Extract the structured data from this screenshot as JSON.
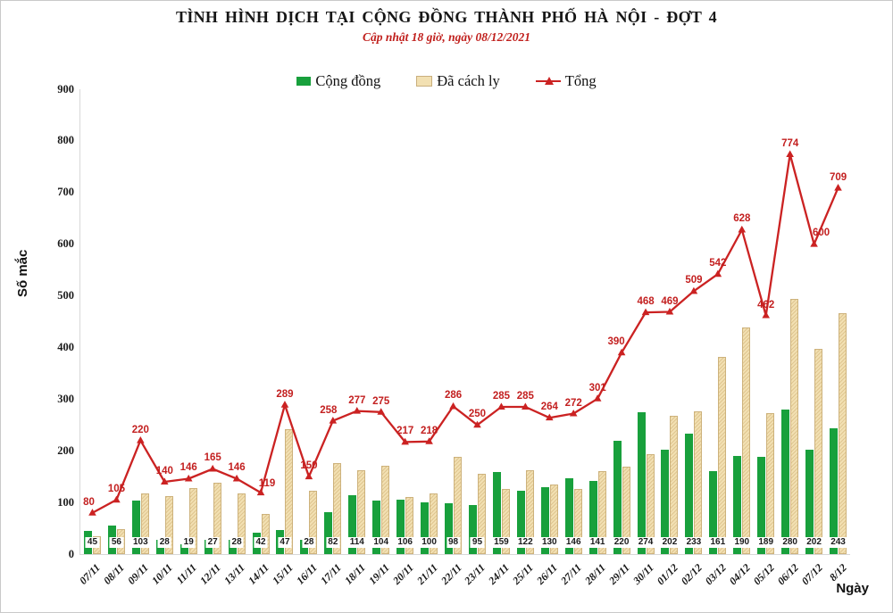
{
  "header": {
    "title": "TÌNH HÌNH DỊCH TẠI CỘNG ĐỒNG THÀNH PHỐ HÀ NỘI - ĐỢT 4",
    "subtitle": "Cập nhật 18 giờ, ngày 08/12/2021"
  },
  "legend": {
    "items": [
      {
        "label": "Cộng đồng",
        "type": "bar",
        "color": "#18a03c"
      },
      {
        "label": "Đã cách ly",
        "type": "bar",
        "color": "#f2e0b2",
        "border": "#c9af7d"
      },
      {
        "label": "Tổng",
        "type": "line",
        "color": "#cb2222"
      }
    ]
  },
  "axes": {
    "y_label": "Số mắc",
    "x_label": "Ngày",
    "y_ticks": [
      0,
      100,
      200,
      300,
      400,
      500,
      600,
      700,
      800,
      900
    ]
  },
  "chart_data": {
    "type": "bar",
    "title": "TÌNH HÌNH DỊCH TẠI CỘNG ĐỒNG THÀNH PHỐ HÀ NỘI - ĐỢT 4",
    "subtitle": "Cập nhật 18 giờ, ngày 08/12/2021",
    "categories": [
      "07/11",
      "08/11",
      "09/11",
      "10/11",
      "11/11",
      "12/11",
      "13/11",
      "14/11",
      "15/11",
      "16/11",
      "17/11",
      "18/11",
      "19/11",
      "20/11",
      "21/11",
      "22/11",
      "23/11",
      "24/11",
      "25/11",
      "26/11",
      "27/11",
      "28/11",
      "29/11",
      "30/11",
      "01/12",
      "02/12",
      "03/12",
      "04/12",
      "05/12",
      "06/12",
      "07/12",
      "8/12"
    ],
    "series": [
      {
        "name": "Cộng đồng",
        "type": "bar",
        "color": "#18a03c",
        "values": [
          45,
          56,
          103,
          28,
          19,
          27,
          28,
          42,
          47,
          28,
          82,
          114,
          104,
          106,
          100,
          98,
          95,
          159,
          122,
          130,
          146,
          141,
          220,
          274,
          202,
          233,
          161,
          190,
          189,
          280,
          202,
          243
        ],
        "labels_visible": true
      },
      {
        "name": "Đã cách ly",
        "type": "bar",
        "color": "#f2e0b2",
        "values": [
          35,
          49,
          117,
          112,
          127,
          138,
          118,
          77,
          242,
          122,
          176,
          163,
          171,
          111,
          118,
          188,
          155,
          126,
          163,
          134,
          126,
          160,
          170,
          194,
          267,
          276,
          381,
          438,
          273,
          494,
          398,
          466
        ],
        "labels_visible": false
      },
      {
        "name": "Tổng",
        "type": "line",
        "color": "#cb2222",
        "values": [
          80,
          105,
          220,
          140,
          146,
          165,
          146,
          119,
          289,
          150,
          258,
          277,
          275,
          217,
          218,
          286,
          250,
          285,
          285,
          264,
          272,
          301,
          390,
          468,
          469,
          509,
          542,
          628,
          462,
          774,
          600,
          709
        ],
        "labels_visible": true
      }
    ],
    "xlabel": "Ngày",
    "ylabel": "Số mắc",
    "ylim": [
      0,
      900
    ],
    "grid": false,
    "legend_position": "top"
  }
}
